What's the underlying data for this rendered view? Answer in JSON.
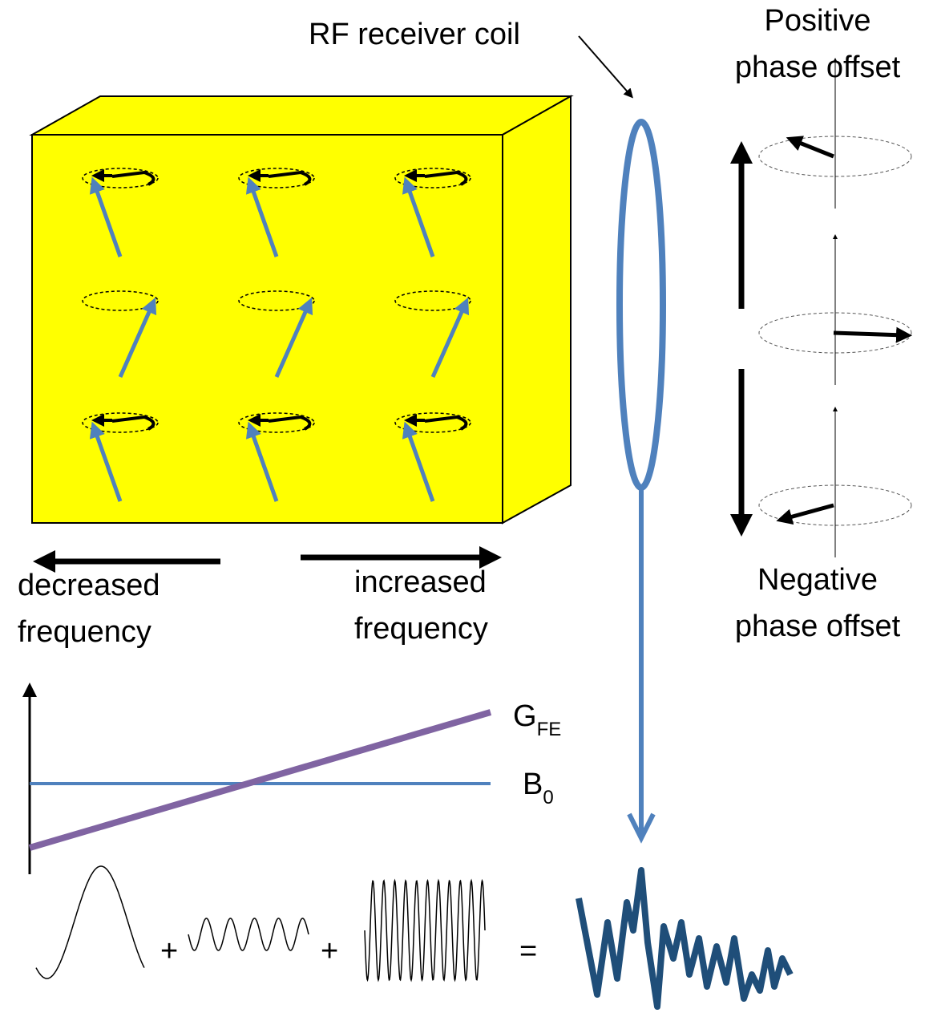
{
  "labels": {
    "coil": "RF receiver coil",
    "positive": [
      "Positive",
      "phase offset"
    ],
    "negative": [
      "Negative",
      "phase offset"
    ],
    "decreased": [
      "decreased",
      "frequency"
    ],
    "increased": [
      "increased",
      "frequency"
    ]
  },
  "graph": {
    "gradient": {
      "base": "G",
      "sub": "FE"
    },
    "field": {
      "base": "B",
      "sub": "0"
    }
  },
  "equation": {
    "plus1": "+",
    "plus2": "+",
    "equals": "="
  }
}
